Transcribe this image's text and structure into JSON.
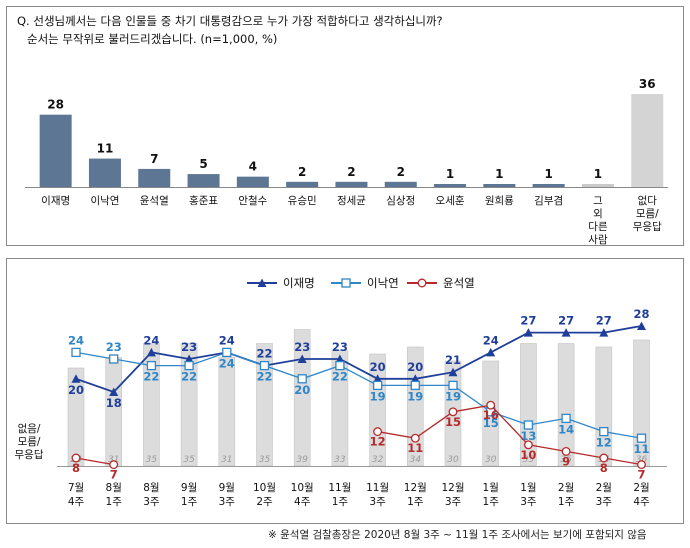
{
  "question": {
    "line1": "Q. 선생님께서는 다음 인물들 중 차기 대통령감으로 누가 가장 적합하다고 생각하십니까?",
    "line2": "순서는 무작위로 불러드리겠습니다. (n=1,000, %)"
  },
  "colors": {
    "bar_dark": "#5d7694",
    "bar_light": "#d4d4d4",
    "lee_jm": "#1f3f9a",
    "lee_ny": "#2f86c8",
    "yoon": "#b52a2a",
    "grey_bar": "#dcdcdc"
  },
  "chart_data": [
    {
      "type": "bar",
      "categories": [
        "이재명",
        "이낙연",
        "윤석열",
        "홍준표",
        "안철수",
        "유승민",
        "정세균",
        "심상정",
        "오세훈",
        "원희룡",
        "김부겸",
        "그 외 다른 사람",
        "없다 모름/ 무응답"
      ],
      "values": [
        28,
        11,
        7,
        5,
        4,
        2,
        2,
        2,
        1,
        1,
        1,
        1,
        36
      ]
    },
    {
      "type": "line",
      "x": [
        "7월 4주",
        "8월 1주",
        "8월 3주",
        "9월 1주",
        "9월 3주",
        "10월 2주",
        "10월 4주",
        "11월 1주",
        "11월 3주",
        "12월 1주",
        "12월 3주",
        "1월 1주",
        "1월 3주",
        "2월 1주",
        "2월 3주",
        "2월 4주"
      ],
      "legend": [
        "이재명",
        "이낙연",
        "윤석열"
      ],
      "series": [
        {
          "name": "이재명",
          "values": [
            20,
            18,
            24,
            23,
            24,
            22,
            23,
            23,
            20,
            20,
            21,
            24,
            27,
            27,
            27,
            28
          ]
        },
        {
          "name": "이낙연",
          "values": [
            24,
            23,
            22,
            22,
            24,
            22,
            20,
            22,
            19,
            19,
            19,
            15,
            13,
            14,
            12,
            11
          ]
        },
        {
          "name": "윤석열",
          "values": [
            8,
            7,
            null,
            null,
            null,
            null,
            null,
            null,
            12,
            11,
            15,
            16,
            10,
            9,
            8,
            7
          ]
        }
      ],
      "bars_label": "없음/ 모름/ 무응답",
      "bars": [
        28,
        31,
        35,
        35,
        31,
        35,
        39,
        33,
        32,
        34,
        30,
        30,
        35,
        35,
        34,
        36
      ]
    }
  ],
  "footnote": "※ 윤석열 검찰총장은 2020년 8월 3주 ~ 11월 1주 조사에서는 보기에 포함되지 않음"
}
